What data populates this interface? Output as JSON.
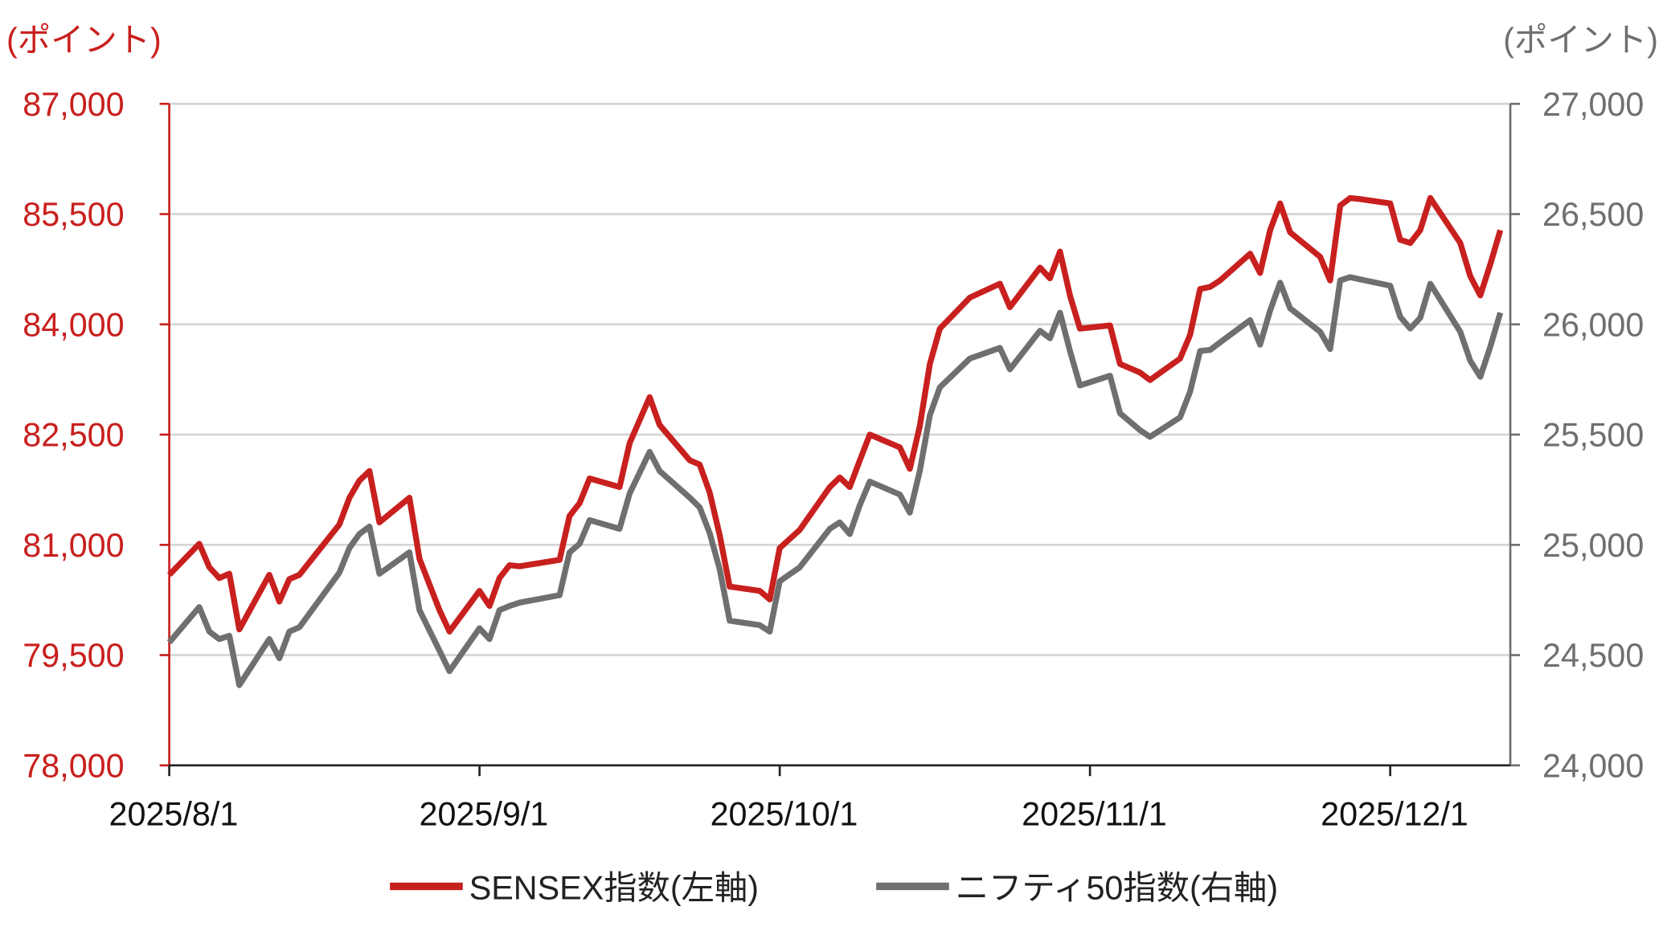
{
  "chart_data": {
    "type": "line",
    "left_axis": {
      "unit_label": "(ポイント)",
      "ylim": [
        78000,
        87000
      ],
      "ticks": [
        "78,000",
        "79,500",
        "81,000",
        "82,500",
        "84,000",
        "85,500",
        "87,000"
      ],
      "tick_values": [
        78000,
        79500,
        81000,
        82500,
        84000,
        85500,
        87000
      ],
      "color": "#c8201e"
    },
    "right_axis": {
      "unit_label": "(ポイント)",
      "ylim": [
        24000,
        27000
      ],
      "ticks": [
        "24,000",
        "24,500",
        "25,000",
        "25,500",
        "26,000",
        "26,500",
        "27,000"
      ],
      "tick_values": [
        24000,
        24500,
        25000,
        25500,
        26000,
        26500,
        27000
      ],
      "color": "#6f6f6f"
    },
    "x_axis": {
      "ticks": [
        "2025/8/1",
        "2025/9/1",
        "2025/10/1",
        "2025/11/1",
        "2025/12/1"
      ],
      "tick_dates": [
        "2025-08-01",
        "2025-09-01",
        "2025-10-01",
        "2025-11-01",
        "2025-12-01"
      ],
      "range": [
        "2025-08-01",
        "2025-12-13"
      ]
    },
    "grid": true,
    "legend_position": "bottom",
    "dates": [
      "2025-08-01",
      "2025-08-04",
      "2025-08-05",
      "2025-08-06",
      "2025-08-07",
      "2025-08-08",
      "2025-08-11",
      "2025-08-12",
      "2025-08-13",
      "2025-08-14",
      "2025-08-18",
      "2025-08-19",
      "2025-08-20",
      "2025-08-21",
      "2025-08-22",
      "2025-08-25",
      "2025-08-26",
      "2025-08-28",
      "2025-08-29",
      "2025-09-01",
      "2025-09-02",
      "2025-09-03",
      "2025-09-04",
      "2025-09-05",
      "2025-09-09",
      "2025-09-10",
      "2025-09-11",
      "2025-09-12",
      "2025-09-15",
      "2025-09-16",
      "2025-09-18",
      "2025-09-19",
      "2025-09-22",
      "2025-09-23",
      "2025-09-24",
      "2025-09-25",
      "2025-09-26",
      "2025-09-29",
      "2025-09-30",
      "2025-10-01",
      "2025-10-03",
      "2025-10-06",
      "2025-10-07",
      "2025-10-08",
      "2025-10-09",
      "2025-10-10",
      "2025-10-13",
      "2025-10-14",
      "2025-10-15",
      "2025-10-16",
      "2025-10-17",
      "2025-10-20",
      "2025-10-23",
      "2025-10-24",
      "2025-10-27",
      "2025-10-28",
      "2025-10-29",
      "2025-10-30",
      "2025-10-31",
      "2025-11-03",
      "2025-11-04",
      "2025-11-06",
      "2025-11-07",
      "2025-11-10",
      "2025-11-11",
      "2025-11-12",
      "2025-11-13",
      "2025-11-14",
      "2025-11-17",
      "2025-11-18",
      "2025-11-19",
      "2025-11-20",
      "2025-11-21",
      "2025-11-24",
      "2025-11-25",
      "2025-11-26",
      "2025-11-27",
      "2025-11-28",
      "2025-12-01",
      "2025-12-02",
      "2025-12-03",
      "2025-12-04",
      "2025-12-05",
      "2025-12-08",
      "2025-12-09",
      "2025-12-10",
      "2025-12-11",
      "2025-12-12"
    ],
    "series": [
      {
        "name": "SENSEX指数(左軸)",
        "axis": "left",
        "color": "#c8201e",
        "values": [
          80592,
          81015,
          80695,
          80549,
          80607,
          79850,
          80592,
          80228,
          80534,
          80592,
          81277,
          81641,
          81874,
          82005,
          81306,
          81641,
          80811,
          80112,
          79820,
          80374,
          80170,
          80549,
          80723,
          80709,
          80796,
          81393,
          81568,
          81903,
          81786,
          82383,
          83010,
          82631,
          82150,
          82092,
          81714,
          81131,
          80432,
          80374,
          80257,
          80956,
          81204,
          81786,
          81918,
          81786,
          82150,
          82500,
          82325,
          82034,
          82617,
          83461,
          83942,
          84364,
          84553,
          84233,
          84772,
          84626,
          84990,
          84393,
          83942,
          83985,
          83461,
          83345,
          83243,
          83534,
          83854,
          84481,
          84510,
          84597,
          84961,
          84699,
          85282,
          85646,
          85252,
          84917,
          84597,
          85617,
          85718,
          85704,
          85646,
          85150,
          85107,
          85282,
          85718,
          85107,
          84655,
          84393,
          84815,
          85282
        ]
      },
      {
        "name": "ニフティ50指数(右軸)",
        "axis": "right",
        "color": "#6f6f6f",
        "values": [
          24558,
          24718,
          24607,
          24573,
          24588,
          24364,
          24573,
          24486,
          24607,
          24626,
          24874,
          24986,
          25049,
          25083,
          24869,
          24966,
          24704,
          24520,
          24427,
          24622,
          24573,
          24704,
          24723,
          24738,
          24772,
          24966,
          25005,
          25112,
          25073,
          25233,
          25422,
          25335,
          25214,
          25170,
          25054,
          24889,
          24656,
          24636,
          24607,
          24835,
          24898,
          25073,
          25102,
          25049,
          25180,
          25287,
          25228,
          25146,
          25335,
          25588,
          25714,
          25845,
          25893,
          25796,
          25971,
          25937,
          26053,
          25879,
          25723,
          25767,
          25597,
          25520,
          25490,
          25578,
          25694,
          25879,
          25884,
          25918,
          26019,
          25908,
          26063,
          26189,
          26073,
          25966,
          25888,
          26199,
          26214,
          26204,
          26175,
          26034,
          25981,
          26029,
          26184,
          25966,
          25835,
          25762,
          25898,
          26053
        ]
      }
    ]
  }
}
